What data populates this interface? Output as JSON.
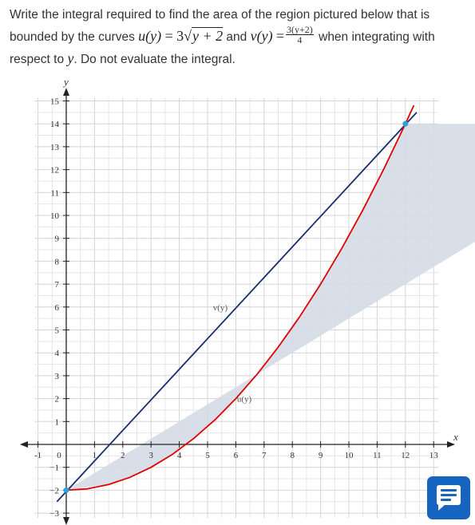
{
  "question": {
    "part1": "Write the integral required to find the area of the region pictured below that is bounded by the curves ",
    "u_lhs": "u(y)",
    "u_rhs_coef": "= 3",
    "u_rhs_rad": "y + 2",
    "and": " and ",
    "v_lhs": "v(y)",
    "eq": "=",
    "v_num": "3(y+2)",
    "v_den": "4",
    "part2": " when integrating with respect to ",
    "var": "y",
    "part3": ". Do not evaluate the integral."
  },
  "chart_data": {
    "type": "line",
    "xlabel": "x",
    "ylabel": "y",
    "xlim": [
      -1,
      13
    ],
    "ylim": [
      -3,
      15
    ],
    "x_ticks": [
      -1,
      0,
      1,
      2,
      3,
      4,
      5,
      6,
      7,
      8,
      9,
      10,
      11,
      12,
      13
    ],
    "y_ticks": [
      -3,
      -2,
      -1,
      1,
      2,
      3,
      4,
      5,
      6,
      7,
      8,
      9,
      10,
      11,
      12,
      13,
      14,
      15
    ],
    "grid": true,
    "series": [
      {
        "name": "v(y)",
        "color": "#1a2f6e",
        "x": [
          -0.33,
          12.4
        ],
        "y": [
          -2.5,
          14.5
        ]
      },
      {
        "name": "u(y)",
        "color": "#e00000",
        "x": [
          0,
          0.75,
          1.5,
          2.25,
          3,
          3.75,
          4.5,
          5.25,
          6,
          6.75,
          7.5,
          8.25,
          9,
          9.75,
          10.5,
          11.25,
          12,
          12.3
        ],
        "y": [
          -2,
          -1.94,
          -1.75,
          -1.44,
          -1,
          -0.44,
          0.25,
          1.06,
          2,
          3.06,
          4.25,
          5.56,
          7,
          8.56,
          10.25,
          12.06,
          14,
          14.81
        ]
      }
    ],
    "shaded_region": {
      "between": [
        "v(y)",
        "u(y)"
      ],
      "y_from": -2,
      "y_to": 14,
      "color": "#d5dbe6"
    },
    "intersection_points": [
      {
        "x": 0,
        "y": -2
      },
      {
        "x": 12,
        "y": 14
      }
    ],
    "point_color": "#29a3e0",
    "annotations": [
      {
        "text": "v(y)",
        "x": 5.45,
        "y": 6
      },
      {
        "text": "u(y)",
        "x": 6.3,
        "y": 2
      }
    ]
  },
  "feedback_button": {
    "icon": "feedback-icon",
    "color": "#1565c0"
  }
}
